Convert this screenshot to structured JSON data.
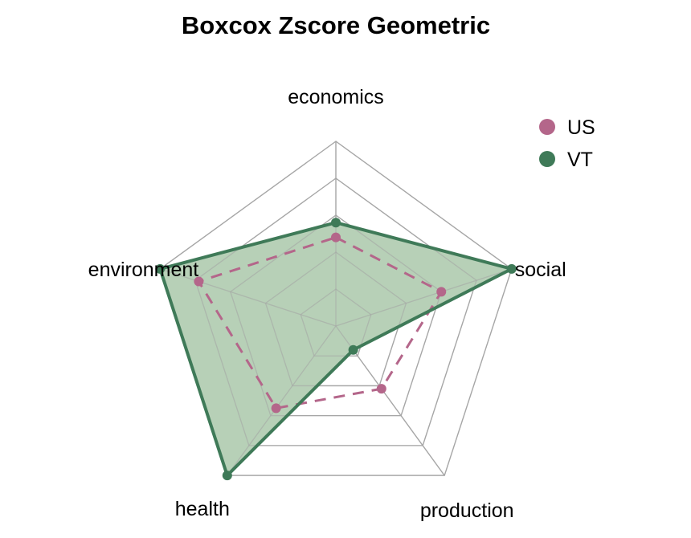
{
  "chart_data": {
    "type": "radar",
    "title": "Boxcox Zscore Geometric",
    "axes": [
      "economics",
      "social",
      "production",
      "health",
      "environment"
    ],
    "scale": {
      "min": 0,
      "max": 1,
      "grid_levels": 5
    },
    "grid": true,
    "legend_position": "top-right",
    "series": [
      {
        "name": "US",
        "color": "#b4668a",
        "line_style": "dashed",
        "fill": false,
        "values": [
          0.48,
          0.6,
          0.42,
          0.55,
          0.78
        ]
      },
      {
        "name": "VT",
        "color": "#3f7a58",
        "line_style": "solid",
        "fill": true,
        "fill_color": "#b3ceb3",
        "values": [
          0.56,
          1.0,
          0.16,
          1.0,
          1.0
        ]
      }
    ]
  }
}
